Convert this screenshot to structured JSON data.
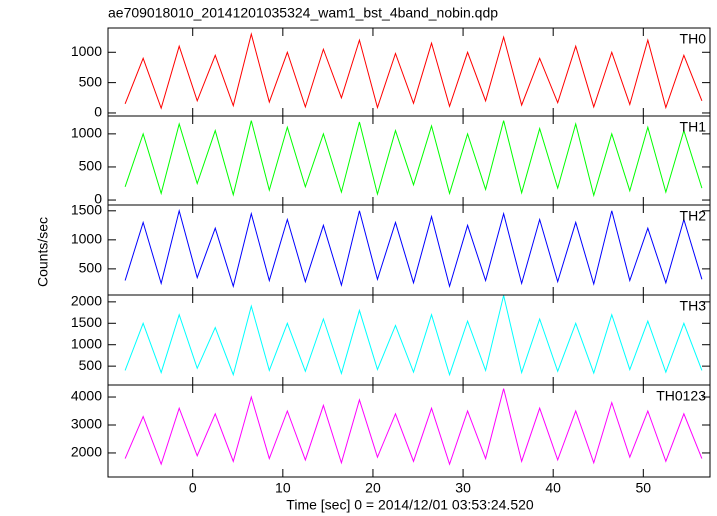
{
  "title": "ae709018010_20141201035324_wam1_bst_4band_nobin.qdp",
  "y_label": "Counts/sec",
  "x_label": "Time [sec] 0 = 2014/12/01 03:53:24.520",
  "chart_data": [
    {
      "type": "line",
      "xlim": [
        -9.4,
        57.4
      ],
      "xticks": [
        0,
        10,
        20,
        30,
        40,
        50
      ],
      "ylim": [
        -50,
        1400
      ],
      "yticks": [
        0,
        500,
        1000
      ],
      "x": [
        -7.5,
        -5.5,
        -3.5,
        -1.5,
        0.5,
        2.5,
        4.5,
        6.5,
        8.5,
        10.5,
        12.5,
        14.5,
        16.5,
        18.5,
        20.5,
        22.5,
        24.5,
        26.5,
        28.5,
        30.5,
        32.5,
        34.5,
        36.5,
        38.5,
        40.5,
        42.5,
        44.5,
        46.5,
        48.5,
        50.5,
        52.5,
        54.5,
        56.5
      ],
      "series": [
        {
          "name": "TH0",
          "color": "#ff0000",
          "values": [
            150,
            900,
            80,
            1100,
            200,
            950,
            120,
            1300,
            180,
            1000,
            100,
            1050,
            250,
            1200,
            90,
            980,
            160,
            1150,
            110,
            1000,
            200,
            1250,
            130,
            900,
            170,
            1100,
            100,
            1000,
            140,
            1200,
            90,
            950,
            200
          ]
        }
      ]
    },
    {
      "type": "line",
      "xlim": [
        -9.4,
        57.4
      ],
      "xticks": [
        0,
        10,
        20,
        30,
        40,
        50
      ],
      "ylim": [
        -75,
        1270
      ],
      "yticks": [
        0,
        500,
        1000
      ],
      "x": [
        -7.5,
        -5.5,
        -3.5,
        -1.5,
        0.5,
        2.5,
        4.5,
        6.5,
        8.5,
        10.5,
        12.5,
        14.5,
        16.5,
        18.5,
        20.5,
        22.5,
        24.5,
        26.5,
        28.5,
        30.5,
        32.5,
        34.5,
        36.5,
        38.5,
        40.5,
        42.5,
        44.5,
        46.5,
        48.5,
        50.5,
        52.5,
        54.5,
        56.5
      ],
      "series": [
        {
          "name": "TH1",
          "color": "#00ff00",
          "values": [
            200,
            1000,
            100,
            1150,
            250,
            1050,
            80,
            1200,
            150,
            1100,
            200,
            1000,
            120,
            1180,
            90,
            1050,
            230,
            1120,
            100,
            1000,
            160,
            1200,
            110,
            1080,
            180,
            1150,
            70,
            1000,
            140,
            1100,
            120,
            1050,
            180
          ]
        }
      ]
    },
    {
      "type": "line",
      "xlim": [
        -9.4,
        57.4
      ],
      "xticks": [
        0,
        10,
        20,
        30,
        40,
        50
      ],
      "ylim": [
        50,
        1600
      ],
      "yticks": [
        500,
        1000,
        1500
      ],
      "x": [
        -7.5,
        -5.5,
        -3.5,
        -1.5,
        0.5,
        2.5,
        4.5,
        6.5,
        8.5,
        10.5,
        12.5,
        14.5,
        16.5,
        18.5,
        20.5,
        22.5,
        24.5,
        26.5,
        28.5,
        30.5,
        32.5,
        34.5,
        36.5,
        38.5,
        40.5,
        42.5,
        44.5,
        46.5,
        48.5,
        50.5,
        52.5,
        54.5,
        56.5
      ],
      "series": [
        {
          "name": "TH2",
          "color": "#0000ff",
          "values": [
            300,
            1300,
            250,
            1500,
            350,
            1200,
            200,
            1450,
            300,
            1350,
            280,
            1250,
            220,
            1500,
            320,
            1300,
            260,
            1400,
            200,
            1250,
            300,
            1450,
            250,
            1350,
            280,
            1300,
            240,
            1500,
            300,
            1200,
            260,
            1350,
            320
          ]
        }
      ]
    },
    {
      "type": "line",
      "xlim": [
        -9.4,
        57.4
      ],
      "xticks": [
        0,
        10,
        20,
        30,
        40,
        50
      ],
      "ylim": [
        60,
        2160
      ],
      "yticks": [
        500,
        1000,
        1500,
        2000
      ],
      "x": [
        -7.5,
        -5.5,
        -3.5,
        -1.5,
        0.5,
        2.5,
        4.5,
        6.5,
        8.5,
        10.5,
        12.5,
        14.5,
        16.5,
        18.5,
        20.5,
        22.5,
        24.5,
        26.5,
        28.5,
        30.5,
        32.5,
        34.5,
        36.5,
        38.5,
        40.5,
        42.5,
        44.5,
        46.5,
        48.5,
        50.5,
        52.5,
        54.5,
        56.5
      ],
      "series": [
        {
          "name": "TH3",
          "color": "#00ffff",
          "values": [
            400,
            1500,
            350,
            1700,
            450,
            1400,
            300,
            1900,
            400,
            1500,
            380,
            1600,
            330,
            1800,
            420,
            1450,
            360,
            1700,
            300,
            1550,
            400,
            2150,
            350,
            1600,
            380,
            1500,
            340,
            1700,
            420,
            1550,
            360,
            1500,
            400
          ]
        }
      ]
    },
    {
      "type": "line",
      "xlim": [
        -9.4,
        57.4
      ],
      "xticks": [
        0,
        10,
        20,
        30,
        40,
        50
      ],
      "ylim": [
        1140,
        4430
      ],
      "yticks": [
        2000,
        3000,
        4000
      ],
      "x": [
        -7.5,
        -5.5,
        -3.5,
        -1.5,
        0.5,
        2.5,
        4.5,
        6.5,
        8.5,
        10.5,
        12.5,
        14.5,
        16.5,
        18.5,
        20.5,
        22.5,
        24.5,
        26.5,
        28.5,
        30.5,
        32.5,
        34.5,
        36.5,
        38.5,
        40.5,
        42.5,
        44.5,
        46.5,
        48.5,
        50.5,
        52.5,
        54.5,
        56.5
      ],
      "series": [
        {
          "name": "TH0123",
          "color": "#ff00ff",
          "values": [
            1800,
            3300,
            1600,
            3600,
            1900,
            3400,
            1700,
            4000,
            1800,
            3500,
            1750,
            3700,
            1650,
            3900,
            1850,
            3400,
            1700,
            3600,
            1600,
            3500,
            1800,
            4300,
            1700,
            3600,
            1750,
            3500,
            1650,
            3800,
            1850,
            3500,
            1700,
            3400,
            1800
          ]
        }
      ]
    }
  ]
}
